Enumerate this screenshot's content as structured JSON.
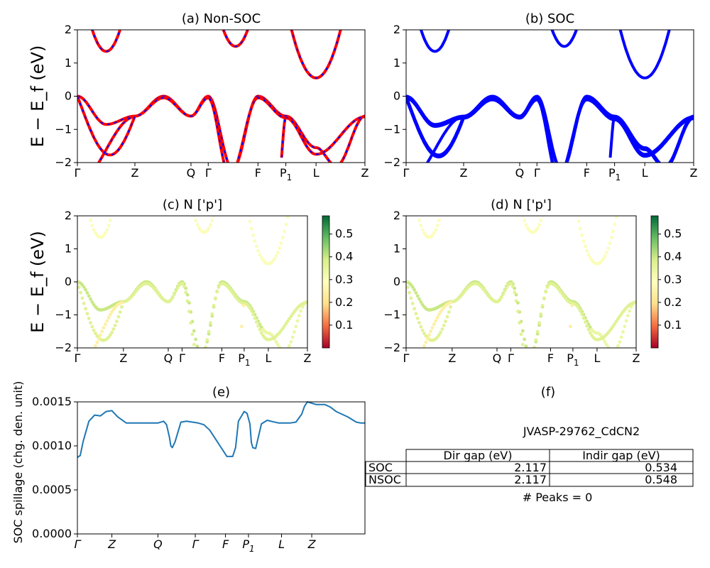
{
  "chart_data": [
    {
      "id": "a",
      "type": "line",
      "title": "(a) Non-SOC",
      "ylabel": "E − E_f (eV)",
      "ylim": [
        -2,
        2
      ],
      "yticks": [
        "2",
        "1",
        "0",
        "−1",
        "−2"
      ],
      "kpoints": [
        {
          "label": "Γ",
          "x": 0.0
        },
        {
          "label": "Z",
          "x": 0.2
        },
        {
          "label": "Q",
          "x": 0.395
        },
        {
          "label": "Γ",
          "x": 0.455
        },
        {
          "label": "F",
          "x": 0.628
        },
        {
          "label": "P",
          "sub": "1",
          "x": 0.725
        },
        {
          "label": "L",
          "x": 0.83
        },
        {
          "label": "Z",
          "x": 1.0
        }
      ],
      "series": [
        {
          "color": "#ff0000",
          "dash_color": "#0000ff"
        }
      ]
    },
    {
      "id": "b",
      "type": "line",
      "title": "(b) SOC",
      "ylim": [
        -2,
        2
      ],
      "yticks": [
        "2",
        "1",
        "0",
        "−1",
        "−2"
      ],
      "kpoints": [
        {
          "label": "Γ",
          "x": 0.0
        },
        {
          "label": "Z",
          "x": 0.2
        },
        {
          "label": "Q",
          "x": 0.395
        },
        {
          "label": "Γ",
          "x": 0.455
        },
        {
          "label": "F",
          "x": 0.628
        },
        {
          "label": "P",
          "sub": "1",
          "x": 0.725
        },
        {
          "label": "L",
          "x": 0.83
        },
        {
          "label": "Z",
          "x": 1.0
        }
      ],
      "series": [
        {
          "color": "#0000ff"
        }
      ]
    },
    {
      "id": "c",
      "type": "scatter",
      "title": "(c)  N ['p']",
      "ylabel": "E − E_f (eV)",
      "ylim": [
        -2,
        2
      ],
      "yticks": [
        "2",
        "1",
        "0",
        "−1",
        "−2"
      ],
      "colorbar_ticks": [
        "0.5",
        "0.4",
        "0.3",
        "0.2",
        "0.1"
      ],
      "colorbar_range": [
        0.0,
        0.58
      ],
      "kpoints": [
        {
          "label": "Γ",
          "x": 0.0
        },
        {
          "label": "Z",
          "x": 0.2
        },
        {
          "label": "Q",
          "x": 0.395
        },
        {
          "label": "Γ",
          "x": 0.455
        },
        {
          "label": "F",
          "x": 0.628
        },
        {
          "label": "P",
          "sub": "1",
          "x": 0.725
        },
        {
          "label": "L",
          "x": 0.83
        },
        {
          "label": "Z",
          "x": 1.0
        }
      ]
    },
    {
      "id": "d",
      "type": "scatter",
      "title": "(d) N ['p']",
      "ylim": [
        -2,
        2
      ],
      "yticks": [
        "2",
        "1",
        "0",
        "−1",
        "−2"
      ],
      "colorbar_ticks": [
        "0.5",
        "0.4",
        "0.3",
        "0.2",
        "0.1"
      ],
      "colorbar_range": [
        0.0,
        0.58
      ],
      "kpoints": [
        {
          "label": "Γ",
          "x": 0.0
        },
        {
          "label": "Z",
          "x": 0.2
        },
        {
          "label": "Q",
          "x": 0.395
        },
        {
          "label": "Γ",
          "x": 0.455
        },
        {
          "label": "F",
          "x": 0.628
        },
        {
          "label": "P",
          "sub": "1",
          "x": 0.725
        },
        {
          "label": "L",
          "x": 0.83
        },
        {
          "label": "Z",
          "x": 1.0
        }
      ]
    },
    {
      "id": "e",
      "type": "line",
      "title": "(e)",
      "ylabel": "SOC spillage (chg. den. unit)",
      "ylim": [
        0,
        0.0015
      ],
      "yticks": [
        "0.0015",
        "0.0010",
        "0.0005",
        "0.0000"
      ],
      "kpoints": [
        {
          "label": "Γ",
          "x": 0.0
        },
        {
          "label": "Z",
          "x": 0.12
        },
        {
          "label": "Q",
          "x": 0.28
        },
        {
          "label": "Γ",
          "x": 0.41
        },
        {
          "label": "F",
          "x": 0.515
        },
        {
          "label": "P",
          "sub": "1",
          "x": 0.595
        },
        {
          "label": "L",
          "x": 0.71
        },
        {
          "label": "Z",
          "x": 0.815
        }
      ],
      "series": [
        {
          "color": "#1f77b4",
          "x": [
            0,
            0.01,
            0.02,
            0.04,
            0.06,
            0.08,
            0.1,
            0.12,
            0.14,
            0.17,
            0.2,
            0.24,
            0.28,
            0.3,
            0.31,
            0.32,
            0.325,
            0.33,
            0.34,
            0.36,
            0.38,
            0.42,
            0.44,
            0.46,
            0.48,
            0.5,
            0.52,
            0.54,
            0.55,
            0.56,
            0.58,
            0.59,
            0.6,
            0.605,
            0.61,
            0.62,
            0.64,
            0.66,
            0.7,
            0.74,
            0.76,
            0.78,
            0.79,
            0.8,
            0.83,
            0.86,
            0.88,
            0.9,
            0.94,
            0.97,
            0.985,
            1.0
          ],
          "y": [
            0.00087,
            0.00089,
            0.00105,
            0.00128,
            0.00135,
            0.00134,
            0.00139,
            0.0014,
            0.00133,
            0.00126,
            0.00126,
            0.00126,
            0.00126,
            0.00128,
            0.00124,
            0.0011,
            0.001,
            0.00098,
            0.00105,
            0.00127,
            0.00128,
            0.00126,
            0.00124,
            0.00118,
            0.00108,
            0.00098,
            0.00088,
            0.00088,
            0.00098,
            0.00128,
            0.00139,
            0.00137,
            0.00125,
            0.00104,
            0.00098,
            0.00097,
            0.00125,
            0.00129,
            0.00126,
            0.00126,
            0.00127,
            0.00136,
            0.00145,
            0.0015,
            0.00147,
            0.00147,
            0.00144,
            0.00139,
            0.00133,
            0.00127,
            0.00126,
            0.00126
          ]
        }
      ]
    }
  ],
  "panel_f": {
    "title": "(f)",
    "material": "JVASP-29762_CdCN2",
    "table": {
      "headers": [
        "Dir gap (eV)",
        "Indir gap (eV)"
      ],
      "rows": [
        {
          "label": "SOC",
          "dir": "2.117",
          "indir": "0.534"
        },
        {
          "label": "NSOC",
          "dir": "2.117",
          "indir": "0.548"
        }
      ]
    },
    "peaks": "# Peaks = 0"
  }
}
